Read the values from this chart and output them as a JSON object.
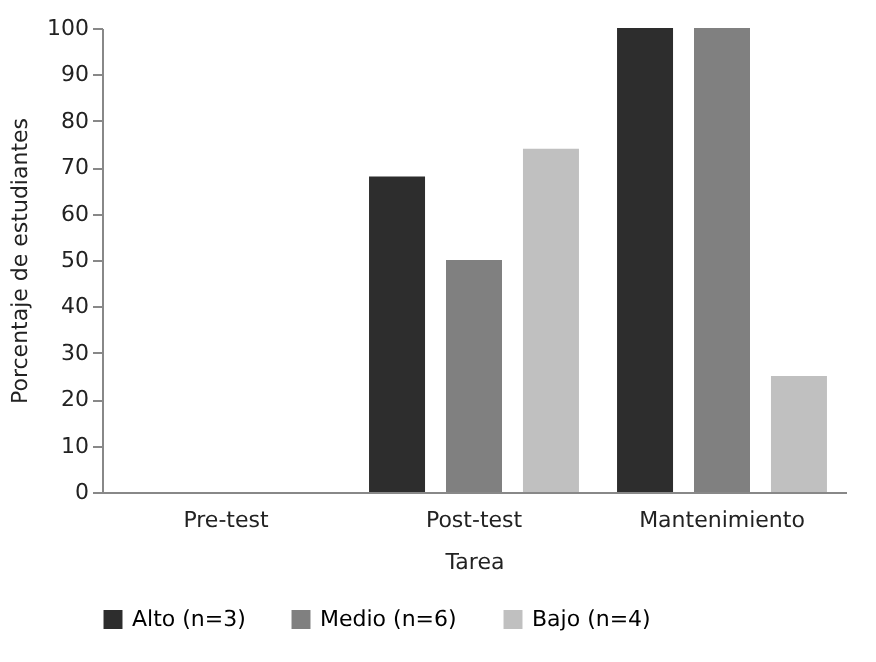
{
  "chart_data": {
    "type": "bar",
    "xlabel": "Tarea",
    "ylabel": "Porcentaje de estudiantes",
    "categories": [
      "Pre-test",
      "Post-test",
      "Mantenimiento"
    ],
    "series": [
      {
        "name": "Alto (n=3)",
        "color": "#2d2d2d",
        "values": [
          0,
          68,
          100
        ]
      },
      {
        "name": "Medio (n=6)",
        "color": "#808080",
        "values": [
          0,
          50,
          100
        ]
      },
      {
        "name": "Bajo (n=4)",
        "color": "#c0c0c0",
        "values": [
          0,
          74,
          25
        ]
      }
    ],
    "ylim": [
      0,
      100
    ],
    "yticks": [
      0,
      10,
      20,
      30,
      40,
      50,
      60,
      70,
      80,
      90,
      100
    ],
    "grid": false,
    "legend": "bottom"
  }
}
